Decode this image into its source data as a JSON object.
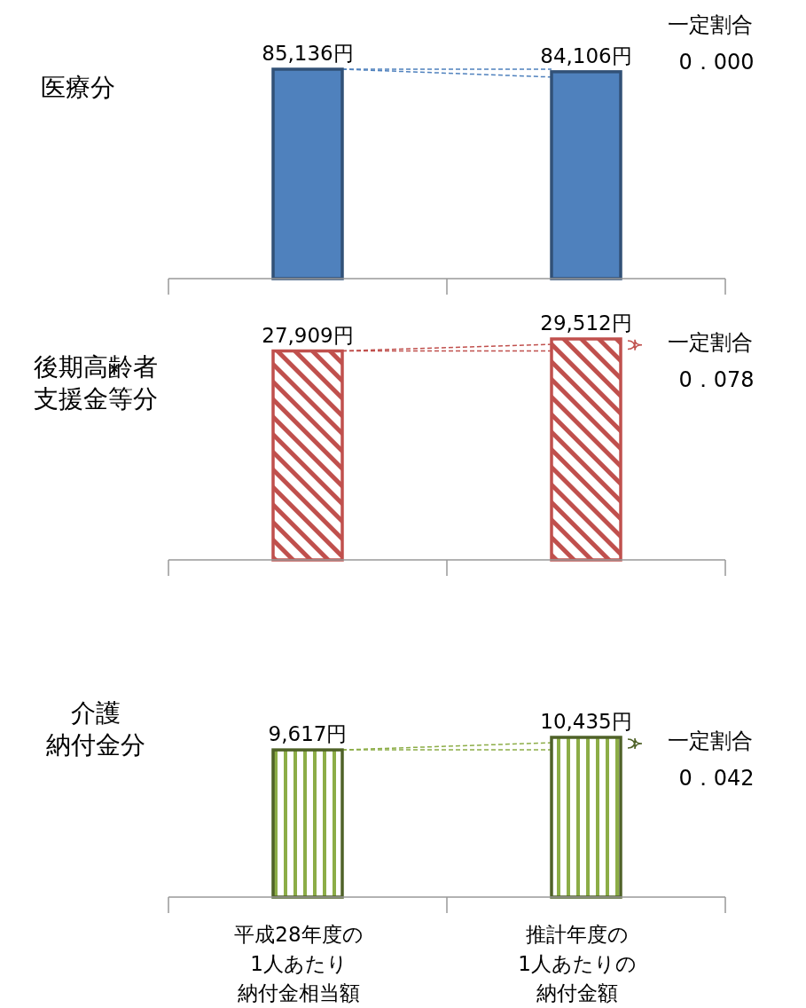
{
  "chart_data": [
    {
      "type": "bar",
      "title": "医療分",
      "categories": [
        null,
        null
      ],
      "values": [
        85136,
        84106
      ],
      "color": "#4f81bd",
      "value_labels": [
        "85,136円",
        "84,106円"
      ],
      "annotations": [
        "一定割合",
        "0．000"
      ],
      "tick_labels": false
    },
    {
      "type": "bar",
      "title": "後期高齢者支援金等分",
      "categories": [
        null,
        null
      ],
      "values": [
        27909,
        29512
      ],
      "color": "#c0504d",
      "value_labels": [
        "27,909円",
        "29,512円"
      ],
      "annotations": [
        "一定割合",
        "0．078"
      ],
      "tick_labels": false
    },
    {
      "type": "bar",
      "title": "介護納付金分",
      "categories": [
        "平成28年度の1人あたり納付金相当額",
        "推計年度の1人あたりの納付金額"
      ],
      "values": [
        9617,
        10435
      ],
      "color": "#4f6228",
      "value_labels": [
        "9,617円",
        "10,435円"
      ],
      "annotations": [
        "一定割合",
        "0．042"
      ],
      "tick_labels": "x"
    }
  ]
}
